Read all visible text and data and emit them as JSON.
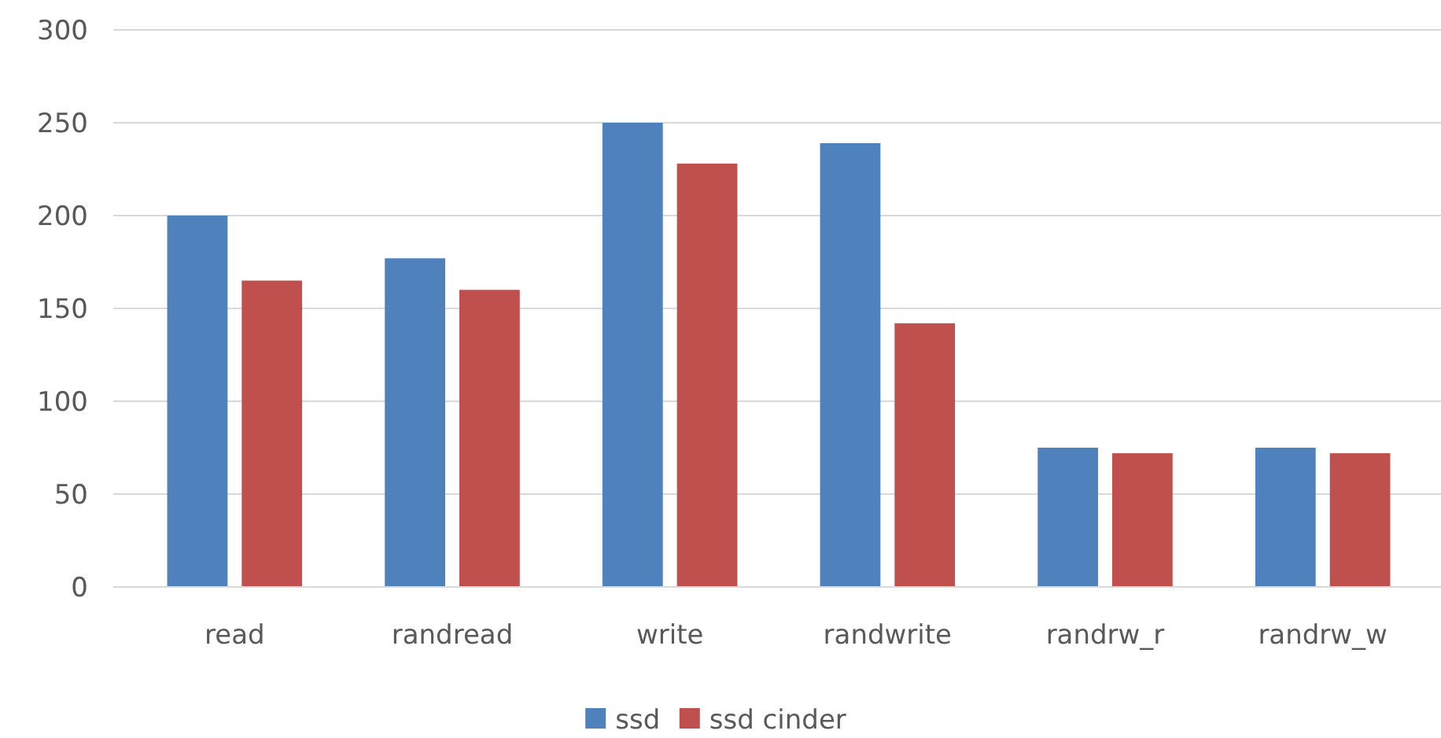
{
  "chart_data": {
    "type": "bar",
    "categories": [
      "read",
      "randread",
      "write",
      "randwrite",
      "randrw_r",
      "randrw_w"
    ],
    "series": [
      {
        "name": "ssd",
        "color": "#4f81bd",
        "values": [
          200,
          177,
          250,
          239,
          75,
          75
        ]
      },
      {
        "name": "ssd cinder",
        "color": "#c0504d",
        "values": [
          165,
          160,
          228,
          142,
          72,
          72
        ]
      }
    ],
    "ylim": [
      0,
      300
    ],
    "yticks": [
      0,
      50,
      100,
      150,
      200,
      250,
      300
    ],
    "grid": "y",
    "legend": "bottom"
  }
}
